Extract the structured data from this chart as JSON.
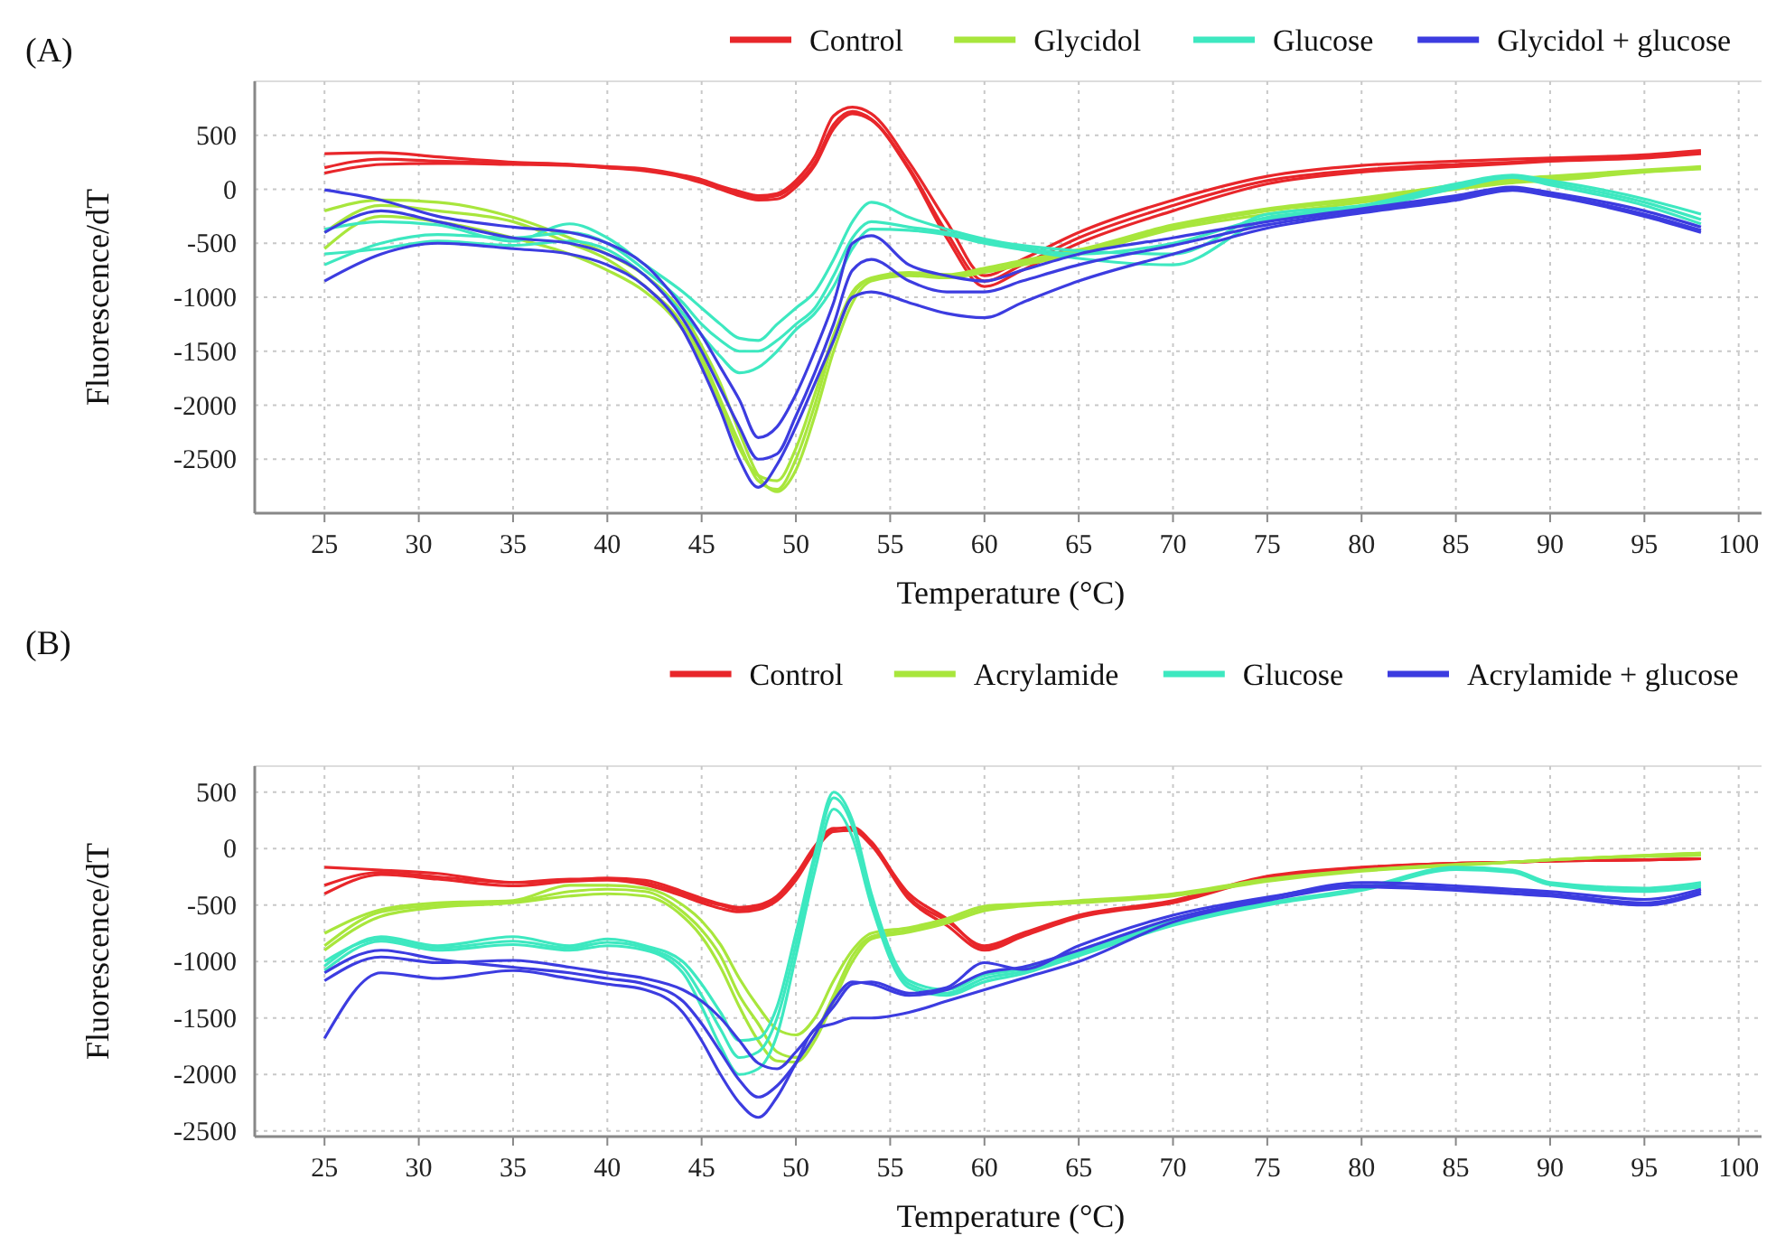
{
  "chart_data": [
    {
      "type": "line",
      "title": "(A)",
      "xlabel": "Temperature (°C)",
      "ylabel": "Fluorescence/dT",
      "xlim": [
        21.3,
        101.5
      ],
      "ylim": [
        -3000,
        1000
      ],
      "xticks": [
        25,
        30,
        35,
        40,
        45,
        50,
        55,
        60,
        65,
        70,
        75,
        80,
        85,
        90,
        95,
        100
      ],
      "yticks": [
        500,
        0,
        -500,
        -1000,
        -1500,
        -2000,
        -2500
      ],
      "grid": true,
      "legend": "top right",
      "line_style": "solid",
      "marker": "none",
      "x": [
        25,
        28,
        31,
        35,
        38,
        40,
        42,
        44,
        45,
        46,
        47,
        48,
        49,
        50,
        51,
        52,
        53,
        54,
        56,
        58,
        60,
        62,
        65,
        70,
        75,
        80,
        85,
        88,
        90,
        95,
        98
      ],
      "series": [
        {
          "name": "Control",
          "color": "#e8262a",
          "values": [
            330,
            340,
            300,
            250,
            230,
            200,
            180,
            120,
            80,
            20,
            -40,
            -80,
            -60,
            50,
            250,
            600,
            720,
            650,
            200,
            -400,
            -850,
            -700,
            -450,
            -150,
            80,
            180,
            230,
            250,
            270,
            300,
            340
          ]
        },
        {
          "color": "#e8262a",
          "values": [
            200,
            280,
            260,
            240,
            230,
            210,
            190,
            130,
            90,
            30,
            -20,
            -60,
            -40,
            80,
            300,
            680,
            760,
            700,
            250,
            -300,
            -800,
            -650,
            -400,
            -100,
            120,
            220,
            260,
            280,
            290,
            320,
            360
          ]
        },
        {
          "color": "#e8262a",
          "values": [
            150,
            230,
            240,
            230,
            220,
            200,
            170,
            110,
            60,
            0,
            -60,
            -100,
            -90,
            20,
            220,
            560,
            700,
            640,
            180,
            -450,
            -900,
            -750,
            -500,
            -200,
            50,
            160,
            210,
            240,
            260,
            290,
            330
          ]
        },
        {
          "name": "Glycidol",
          "color": "#a8e63c",
          "values": [
            -200,
            -100,
            -120,
            -260,
            -450,
            -600,
            -800,
            -1150,
            -1450,
            -1800,
            -2250,
            -2650,
            -2800,
            -2600,
            -2100,
            -1500,
            -1050,
            -850,
            -800,
            -820,
            -770,
            -700,
            -600,
            -370,
            -230,
            -120,
            0,
            60,
            80,
            160,
            190
          ]
        },
        {
          "color": "#a8e63c",
          "values": [
            -400,
            -150,
            -200,
            -300,
            -500,
            -650,
            -900,
            -1250,
            -1550,
            -1950,
            -2350,
            -2700,
            -2780,
            -2500,
            -2000,
            -1400,
            -980,
            -830,
            -780,
            -800,
            -750,
            -680,
            -580,
            -350,
            -200,
            -100,
            20,
            80,
            100,
            170,
            200
          ]
        },
        {
          "color": "#a8e63c",
          "values": [
            -550,
            -250,
            -300,
            -450,
            -600,
            -750,
            -950,
            -1300,
            -1600,
            -2000,
            -2400,
            -2650,
            -2700,
            -2400,
            -1900,
            -1350,
            -950,
            -820,
            -770,
            -790,
            -730,
            -660,
            -560,
            -330,
            -180,
            -80,
            40,
            100,
            120,
            180,
            210
          ]
        },
        {
          "name": "Glucose",
          "color": "#3de8c0",
          "values": [
            -370,
            -300,
            -330,
            -480,
            -320,
            -450,
            -700,
            -950,
            -1100,
            -1250,
            -1380,
            -1400,
            -1250,
            -1100,
            -950,
            -650,
            -300,
            -120,
            -260,
            -370,
            -460,
            -520,
            -570,
            -600,
            -230,
            -150,
            50,
            130,
            80,
            -90,
            -230
          ]
        },
        {
          "color": "#3de8c0",
          "values": [
            -700,
            -500,
            -420,
            -450,
            -400,
            -500,
            -750,
            -1050,
            -1250,
            -1400,
            -1500,
            -1500,
            -1400,
            -1250,
            -1100,
            -800,
            -450,
            -300,
            -350,
            -400,
            -480,
            -540,
            -600,
            -500,
            -260,
            -170,
            30,
            120,
            60,
            -120,
            -280
          ]
        },
        {
          "color": "#3de8c0",
          "values": [
            -600,
            -550,
            -480,
            -520,
            -480,
            -560,
            -800,
            -1150,
            -1350,
            -1550,
            -1700,
            -1650,
            -1500,
            -1300,
            -1150,
            -900,
            -550,
            -370,
            -380,
            -420,
            -500,
            -560,
            -640,
            -700,
            -280,
            -190,
            10,
            110,
            40,
            -150,
            -320
          ]
        },
        {
          "name": "Glycidol + glucose",
          "color": "#3c3ce0",
          "values": [
            -5,
            -100,
            -250,
            -350,
            -400,
            -500,
            -700,
            -1100,
            -1350,
            -1650,
            -1950,
            -2300,
            -2200,
            -1900,
            -1500,
            -1050,
            -500,
            -430,
            -700,
            -800,
            -850,
            -750,
            -600,
            -450,
            -300,
            -180,
            -60,
            20,
            -30,
            -200,
            -350
          ]
        },
        {
          "color": "#3c3ce0",
          "values": [
            -400,
            -200,
            -300,
            -450,
            -500,
            -600,
            -800,
            -1200,
            -1500,
            -1850,
            -2200,
            -2500,
            -2450,
            -2100,
            -1700,
            -1250,
            -750,
            -650,
            -850,
            -950,
            -950,
            -850,
            -700,
            -520,
            -330,
            -200,
            -80,
            0,
            -50,
            -230,
            -380
          ]
        },
        {
          "color": "#3c3ce0",
          "values": [
            -850,
            -600,
            -500,
            -550,
            -600,
            -700,
            -900,
            -1300,
            -1650,
            -2050,
            -2500,
            -2760,
            -2550,
            -2200,
            -1800,
            -1400,
            -1000,
            -950,
            -1050,
            -1150,
            -1190,
            -1050,
            -850,
            -600,
            -360,
            -220,
            -100,
            -10,
            -60,
            -250,
            -400
          ]
        }
      ]
    },
    {
      "type": "line",
      "title": "(B)",
      "xlabel": "Temperature (°C)",
      "ylabel": "Fluorescence/dT",
      "xlim": [
        21.3,
        101.5
      ],
      "ylim": [
        -2550,
        730
      ],
      "xticks": [
        25,
        30,
        35,
        40,
        45,
        50,
        55,
        60,
        65,
        70,
        75,
        80,
        85,
        90,
        95,
        100
      ],
      "yticks": [
        500,
        0,
        -500,
        -1000,
        -1500,
        -2000,
        -2500
      ],
      "grid": true,
      "legend": "top right",
      "line_style": "solid",
      "marker": "none",
      "x": [
        25,
        28,
        31,
        35,
        38,
        40,
        42,
        44,
        45,
        46,
        47,
        48,
        49,
        50,
        51,
        52,
        53,
        54,
        56,
        58,
        60,
        62,
        65,
        70,
        75,
        80,
        85,
        88,
        90,
        95,
        98
      ],
      "series": [
        {
          "name": "Control",
          "color": "#e8262a",
          "values": [
            -165,
            -190,
            -220,
            -300,
            -270,
            -270,
            -300,
            -400,
            -460,
            -500,
            -540,
            -520,
            -440,
            -250,
            5,
            170,
            190,
            60,
            -430,
            -640,
            -860,
            -750,
            -590,
            -460,
            -245,
            -165,
            -130,
            -120,
            -110,
            -100,
            -90
          ]
        },
        {
          "color": "#e8262a",
          "values": [
            -325,
            -210,
            -250,
            -300,
            -280,
            -260,
            -280,
            -380,
            -440,
            -490,
            -520,
            -500,
            -420,
            -230,
            20,
            180,
            170,
            40,
            -400,
            -620,
            -880,
            -770,
            -600,
            -470,
            -255,
            -170,
            -130,
            -120,
            -110,
            -100,
            -90
          ]
        },
        {
          "color": "#e8262a",
          "values": [
            -400,
            -230,
            -270,
            -330,
            -290,
            -280,
            -320,
            -420,
            -480,
            -530,
            -560,
            -540,
            -460,
            -280,
            -20,
            150,
            160,
            30,
            -450,
            -680,
            -900,
            -780,
            -610,
            -480,
            -260,
            -175,
            -130,
            -120,
            -110,
            -100,
            -90
          ]
        },
        {
          "name": "Acrylamide",
          "color": "#a8e63c",
          "values": [
            -750,
            -540,
            -480,
            -460,
            -325,
            -325,
            -350,
            -500,
            -640,
            -850,
            -1150,
            -1400,
            -1600,
            -1650,
            -1500,
            -1170,
            -900,
            -750,
            -700,
            -620,
            -510,
            -490,
            -460,
            -400,
            -270,
            -190,
            -140,
            -120,
            -100,
            -60,
            -40
          ]
        },
        {
          "color": "#a8e63c",
          "values": [
            -860,
            -560,
            -500,
            -470,
            -380,
            -360,
            -380,
            -560,
            -720,
            -950,
            -1300,
            -1550,
            -1800,
            -1850,
            -1650,
            -1300,
            -950,
            -780,
            -720,
            -640,
            -530,
            -500,
            -470,
            -410,
            -280,
            -195,
            -145,
            -120,
            -100,
            -60,
            -40
          ]
        },
        {
          "color": "#a8e63c",
          "values": [
            -900,
            -600,
            -520,
            -480,
            -420,
            -400,
            -420,
            -600,
            -780,
            -1050,
            -1400,
            -1700,
            -1880,
            -1890,
            -1700,
            -1350,
            -1000,
            -800,
            -740,
            -660,
            -550,
            -510,
            -480,
            -420,
            -290,
            -200,
            -150,
            -120,
            -100,
            -70,
            -60
          ]
        },
        {
          "name": "Glucose",
          "color": "#3de8c0",
          "values": [
            -1040,
            -780,
            -860,
            -780,
            -860,
            -800,
            -860,
            -1000,
            -1200,
            -1450,
            -1700,
            -1680,
            -1400,
            -750,
            -50,
            500,
            250,
            -400,
            -1170,
            -1250,
            -1120,
            -1070,
            -910,
            -640,
            -480,
            -350,
            -165,
            -190,
            -300,
            -350,
            -300
          ]
        },
        {
          "color": "#3de8c0",
          "values": [
            -1000,
            -800,
            -880,
            -820,
            -880,
            -830,
            -880,
            -1050,
            -1300,
            -1600,
            -1850,
            -1800,
            -1500,
            -850,
            -100,
            450,
            200,
            -450,
            -1200,
            -1280,
            -1150,
            -1090,
            -930,
            -660,
            -490,
            -360,
            -175,
            -200,
            -310,
            -370,
            -320
          ]
        },
        {
          "color": "#3de8c0",
          "values": [
            -1080,
            -820,
            -900,
            -850,
            -900,
            -860,
            -900,
            -1100,
            -1400,
            -1750,
            -2000,
            -1950,
            -1650,
            -950,
            -200,
            350,
            100,
            -500,
            -1230,
            -1300,
            -1180,
            -1110,
            -950,
            -680,
            -500,
            -370,
            -185,
            -210,
            -320,
            -380,
            -340
          ]
        },
        {
          "name": "Acrylamide + glucose",
          "color": "#3c3ce0",
          "values": [
            -1170,
            -960,
            -1010,
            -990,
            -1050,
            -1100,
            -1150,
            -1250,
            -1350,
            -1500,
            -1700,
            -1900,
            -1950,
            -1800,
            -1600,
            -1400,
            -1200,
            -1180,
            -1280,
            -1230,
            -1010,
            -1070,
            -860,
            -590,
            -430,
            -325,
            -350,
            -380,
            -400,
            -480,
            -380
          ]
        },
        {
          "color": "#3c3ce0",
          "values": [
            -1100,
            -900,
            -980,
            -1050,
            -1100,
            -1150,
            -1200,
            -1350,
            -1550,
            -1800,
            -2050,
            -2200,
            -2100,
            -1900,
            -1650,
            -1350,
            -1180,
            -1200,
            -1300,
            -1250,
            -1100,
            -1050,
            -900,
            -620,
            -440,
            -300,
            -330,
            -360,
            -380,
            -450,
            -360
          ]
        },
        {
          "color": "#3c3ce0",
          "values": [
            -1680,
            -1100,
            -1150,
            -1080,
            -1150,
            -1200,
            -1250,
            -1450,
            -1700,
            -2000,
            -2250,
            -2380,
            -2200,
            -1900,
            -1600,
            -1550,
            -1500,
            -1500,
            -1450,
            -1350,
            -1250,
            -1150,
            -1000,
            -650,
            -460,
            -340,
            -370,
            -400,
            -420,
            -500,
            -400
          ]
        }
      ]
    }
  ]
}
